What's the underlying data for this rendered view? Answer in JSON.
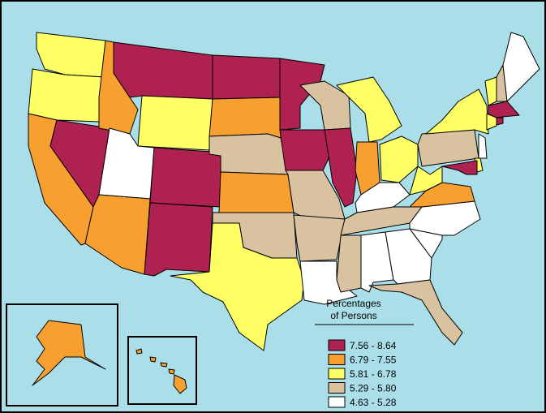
{
  "map": {
    "legend": {
      "title_lines": [
        "Percentages",
        "of Persons"
      ],
      "classes": [
        {
          "label": "7.56 - 8.64",
          "color": "#ae2151"
        },
        {
          "label": "6.79 - 7.55",
          "color": "#f7a02f"
        },
        {
          "label": "5.81 - 6.78",
          "color": "#ffff66"
        },
        {
          "label": "5.29 - 5.80",
          "color": "#d8c2a0"
        },
        {
          "label": "4.63 - 5.28",
          "color": "#ffffff"
        }
      ]
    }
  }
}
